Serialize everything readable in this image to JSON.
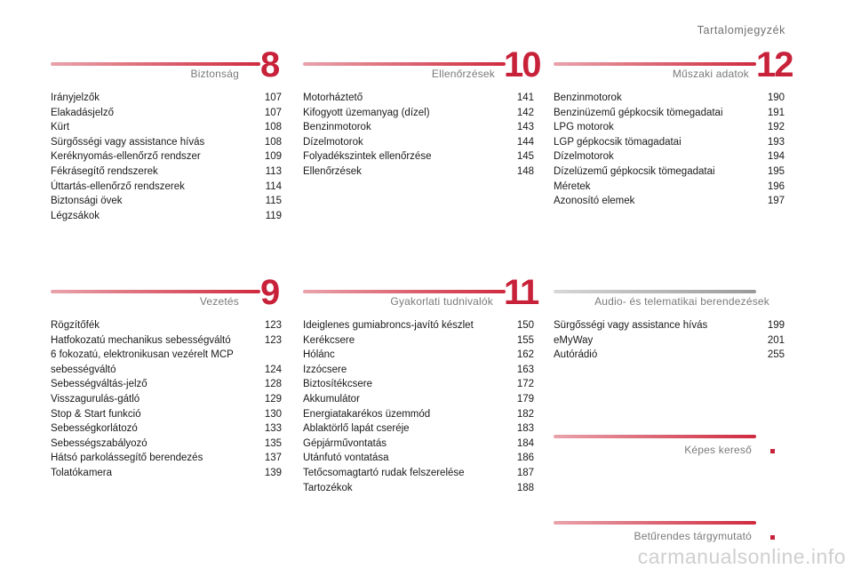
{
  "page_title": "Tartalomjegyzék",
  "sections": [
    {
      "label": "Biztonság",
      "number": "8",
      "items": [
        {
          "title": "Irányjelzők",
          "page": "107"
        },
        {
          "title": "Elakadásjelző",
          "page": "107"
        },
        {
          "title": "Kürt",
          "page": "108"
        },
        {
          "title": "Sürgősségi vagy assistance hívás",
          "page": "108"
        },
        {
          "title": "Keréknyomás-ellenőrző rendszer",
          "page": "109"
        },
        {
          "title": "Fékrásegítő rendszerek",
          "page": "113"
        },
        {
          "title": "Úttartás-ellenőrző rendszerek",
          "page": "114"
        },
        {
          "title": "Biztonsági övek",
          "page": "115"
        },
        {
          "title": "Légzsákok",
          "page": "119"
        }
      ]
    },
    {
      "label": "Ellenőrzések",
      "number": "10",
      "items": [
        {
          "title": "Motorháztető",
          "page": "141"
        },
        {
          "title": "Kifogyott üzemanyag (dízel)",
          "page": "142"
        },
        {
          "title": "Benzinmotorok",
          "page": "143"
        },
        {
          "title": "Dízelmotorok",
          "page": "144"
        },
        {
          "title": "Folyadékszintek ellenőrzése",
          "page": "145"
        },
        {
          "title": "Ellenőrzések",
          "page": "148"
        }
      ]
    },
    {
      "label": "Műszaki adatok",
      "number": "12",
      "items": [
        {
          "title": "Benzinmotorok",
          "page": "190"
        },
        {
          "title": "Benzinüzemű gépkocsik tömegadatai",
          "page": "191"
        },
        {
          "title": "LPG motorok",
          "page": "192"
        },
        {
          "title": "LGP gépkocsik tömagadatai",
          "page": "193"
        },
        {
          "title": "Dízelmotorok",
          "page": "194"
        },
        {
          "title": "Dízelüzemű gépkocsik tömegadatai",
          "page": "195"
        },
        {
          "title": "Méretek",
          "page": "196"
        },
        {
          "title": "Azonosító elemek",
          "page": "197"
        }
      ]
    },
    {
      "label": "Vezetés",
      "number": "9",
      "items": [
        {
          "title": "Rögzítőfék",
          "page": "123"
        },
        {
          "title": "Hatfokozatú mechanikus sebességváltó",
          "page": "123"
        },
        {
          "title": "6 fokozatú, elektronikusan vezérelt MCP\n   sebességváltó",
          "page": "124"
        },
        {
          "title": "Sebességváltás-jelző",
          "page": "128"
        },
        {
          "title": "Visszagurulás-gátló",
          "page": "129"
        },
        {
          "title": "Stop & Start funkció",
          "page": "130"
        },
        {
          "title": "Sebességkorlátozó",
          "page": "133"
        },
        {
          "title": "Sebességszabályozó",
          "page": "135"
        },
        {
          "title": "Hátsó parkolássegítő berendezés",
          "page": "137"
        },
        {
          "title": "Tolatókamera",
          "page": "139"
        }
      ]
    },
    {
      "label": "Gyakorlati tudnivalók",
      "number": "11",
      "items": [
        {
          "title": "Ideiglenes gumiabroncs-javító készlet",
          "page": "150"
        },
        {
          "title": "Kerékcsere",
          "page": "155"
        },
        {
          "title": "Hólánc",
          "page": "162"
        },
        {
          "title": "Izzócsere",
          "page": "163"
        },
        {
          "title": "Biztosítékcsere",
          "page": "172"
        },
        {
          "title": "Akkumulátor",
          "page": "179"
        },
        {
          "title": "Energiatakarékos üzemmód",
          "page": "182"
        },
        {
          "title": "Ablaktörlő lapát cseréje",
          "page": "183"
        },
        {
          "title": "Gépjárművontatás",
          "page": "184"
        },
        {
          "title": "Utánfutó vontatása",
          "page": "186"
        },
        {
          "title": "Tetőcsomagtartó rudak felszerelése",
          "page": "187"
        },
        {
          "title": "Tartozékok",
          "page": "188"
        }
      ]
    },
    {
      "label": "Audio- és telematikai berendezések",
      "number": "",
      "items": [
        {
          "title": "Sürgősségi vagy assistance hívás",
          "page": "199"
        },
        {
          "title": "eMyWay",
          "page": "201"
        },
        {
          "title": "Autórádió",
          "page": "255"
        }
      ]
    }
  ],
  "links": [
    {
      "label": "Képes kereső",
      "marker": "."
    },
    {
      "label": "Betűrendes tárgymutató",
      "marker": "."
    }
  ],
  "watermark": "carmanualsonline.info",
  "colors": {
    "accent": "#c8213a",
    "bar_light": "#e9a3ab"
  }
}
